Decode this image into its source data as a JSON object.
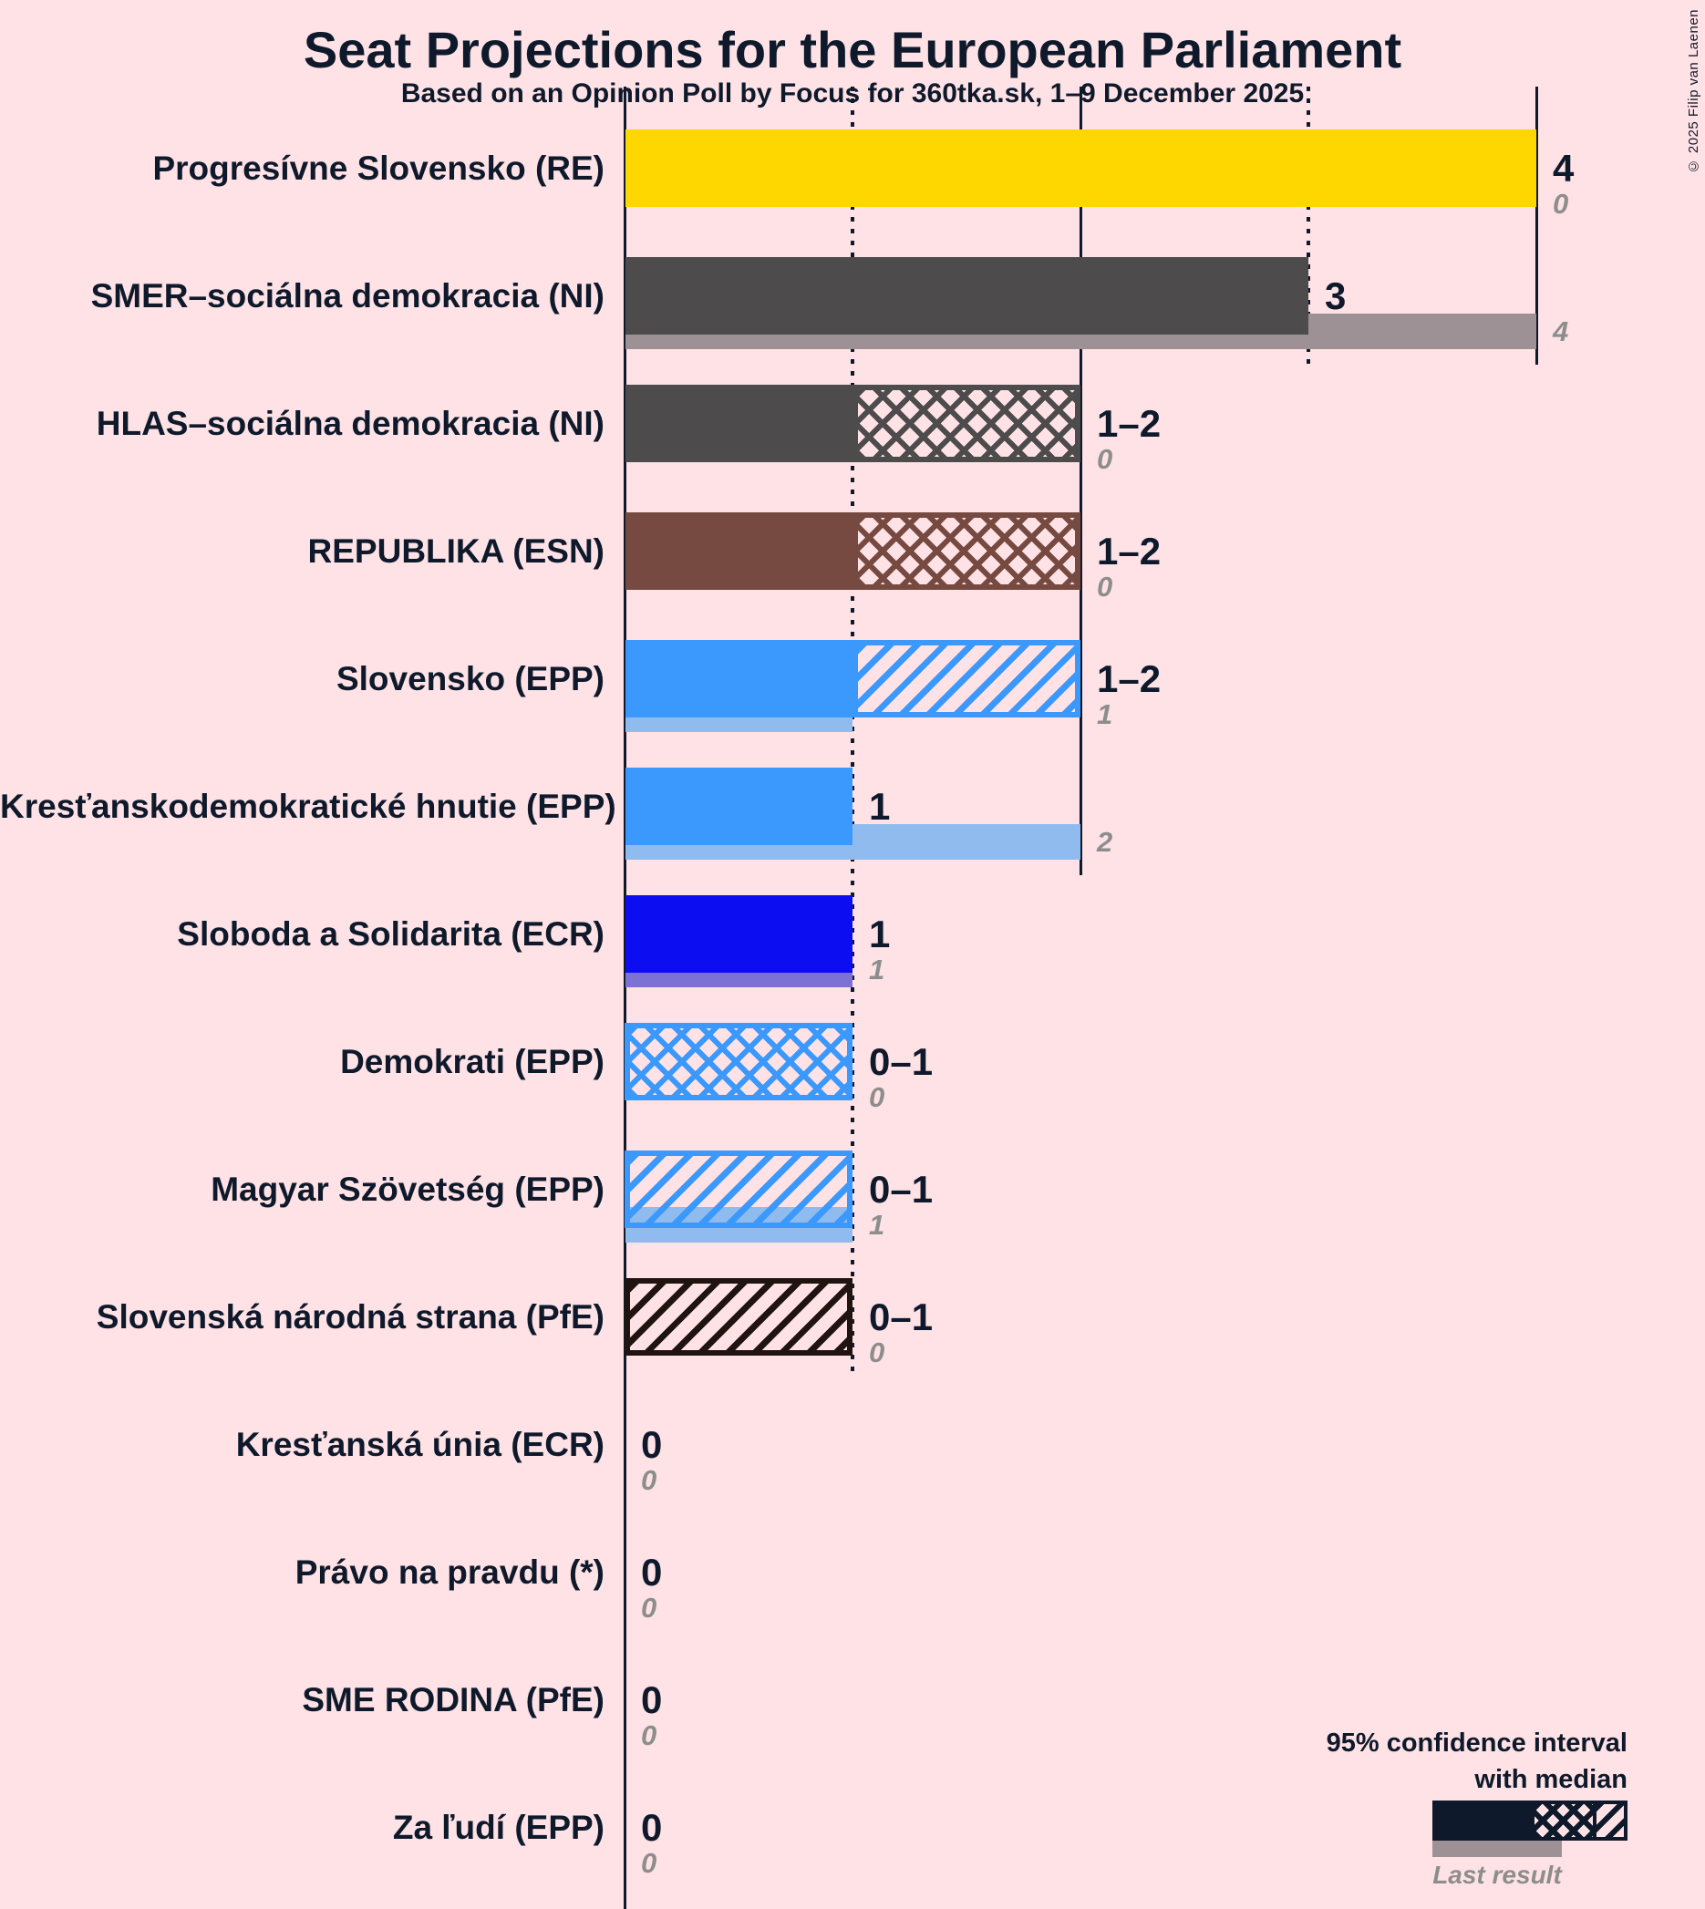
{
  "title": "Seat Projections for the European Parliament",
  "subtitle": "Based on an Opinion Poll by Focus for 360tka.sk, 1–9 December 2025",
  "copyright": "© 2025 Filip van Laenen",
  "legend": {
    "ci_line1": "95% confidence interval",
    "ci_line2": "with median",
    "last_result_label": "Last result"
  },
  "colors": {
    "background": "#ffe2e5",
    "text": "#0e1a2b",
    "gray_text": "#8d8d8d",
    "axis": "#0e1a2b",
    "last_result_gray": "#9d9196"
  },
  "chart_data": {
    "type": "bar",
    "orientation": "horizontal",
    "title": "Seat Projections for the European Parliament",
    "subtitle": "Based on an Opinion Poll by Focus for 360tka.sk, 1–9 December 2025",
    "x_axis": {
      "min": 0,
      "max": 4,
      "ticks": [
        1,
        2,
        3,
        4
      ],
      "dotted_ticks": [
        1,
        3
      ],
      "solid_ticks": [
        2,
        4
      ],
      "grid": true,
      "unit": "seats"
    },
    "legend_position": "bottom-right",
    "parties": [
      {
        "label": "Progresívne Slovensko (RE)",
        "median": 4,
        "ci_low": 4,
        "ci_high": 4,
        "last_result": 0,
        "value_label": "4",
        "last_label": "0",
        "color": "#ffd700",
        "last_color": null,
        "hatch": null
      },
      {
        "label": "SMER–sociálna demokracia (NI)",
        "median": 3,
        "ci_low": 3,
        "ci_high": 3,
        "last_result": 4,
        "value_label": "3",
        "last_label": "4",
        "color": "#4d4b4c",
        "last_color": "#9d9196",
        "hatch": null
      },
      {
        "label": "HLAS–sociálna demokracia (NI)",
        "median": 1,
        "ci_low": 1,
        "ci_high": 2,
        "last_result": 0,
        "value_label": "1–2",
        "last_label": "0",
        "color": "#4d4b4c",
        "last_color": null,
        "hatch": "cross"
      },
      {
        "label": "REPUBLIKA (ESN)",
        "median": 1,
        "ci_low": 1,
        "ci_high": 2,
        "last_result": 0,
        "value_label": "1–2",
        "last_label": "0",
        "color": "#764a41",
        "last_color": null,
        "hatch": "cross"
      },
      {
        "label": "Slovensko (EPP)",
        "median": 1,
        "ci_low": 1,
        "ci_high": 2,
        "last_result": 1,
        "value_label": "1–2",
        "last_label": "1",
        "color": "#3b98fd",
        "last_color": "#90bbee",
        "hatch": "diag"
      },
      {
        "label": "Kresťanskodemokratické hnutie (EPP)",
        "median": 1,
        "ci_low": 1,
        "ci_high": 1,
        "last_result": 2,
        "value_label": "1",
        "last_label": "2",
        "color": "#3b98fd",
        "last_color": "#90bbee",
        "hatch": null
      },
      {
        "label": "Sloboda a Solidarita (ECR)",
        "median": 1,
        "ci_low": 1,
        "ci_high": 1,
        "last_result": 1,
        "value_label": "1",
        "last_label": "1",
        "color": "#0d0df2",
        "last_color": "#7d72d4",
        "hatch": null
      },
      {
        "label": "Demokrati (EPP)",
        "median": 0,
        "ci_low": 0,
        "ci_high": 1,
        "last_result": 0,
        "value_label": "0–1",
        "last_label": "0",
        "color": "#3b98fd",
        "last_color": null,
        "hatch": "cross"
      },
      {
        "label": "Magyar Szövetség (EPP)",
        "median": 0,
        "ci_low": 0,
        "ci_high": 1,
        "last_result": 1,
        "value_label": "0–1",
        "last_label": "1",
        "color": "#3b98fd",
        "last_color": "#90bbee",
        "hatch": "diag"
      },
      {
        "label": "Slovenská národná strana (PfE)",
        "median": 0,
        "ci_low": 0,
        "ci_high": 1,
        "last_result": 0,
        "value_label": "0–1",
        "last_label": "0",
        "color": "#1f140f",
        "last_color": null,
        "hatch": "diag"
      },
      {
        "label": "Kresťanská únia (ECR)",
        "median": 0,
        "ci_low": 0,
        "ci_high": 0,
        "last_result": 0,
        "value_label": "0",
        "last_label": "0",
        "color": null,
        "last_color": null,
        "hatch": null
      },
      {
        "label": "Právo na pravdu (*)",
        "median": 0,
        "ci_low": 0,
        "ci_high": 0,
        "last_result": 0,
        "value_label": "0",
        "last_label": "0",
        "color": null,
        "last_color": null,
        "hatch": null
      },
      {
        "label": "SME RODINA (PfE)",
        "median": 0,
        "ci_low": 0,
        "ci_high": 0,
        "last_result": 0,
        "value_label": "0",
        "last_label": "0",
        "color": null,
        "last_color": null,
        "hatch": null
      },
      {
        "label": "Za ľudí (EPP)",
        "median": 0,
        "ci_low": 0,
        "ci_high": 0,
        "last_result": 0,
        "value_label": "0",
        "last_label": "0",
        "color": null,
        "last_color": null,
        "hatch": null
      }
    ]
  }
}
